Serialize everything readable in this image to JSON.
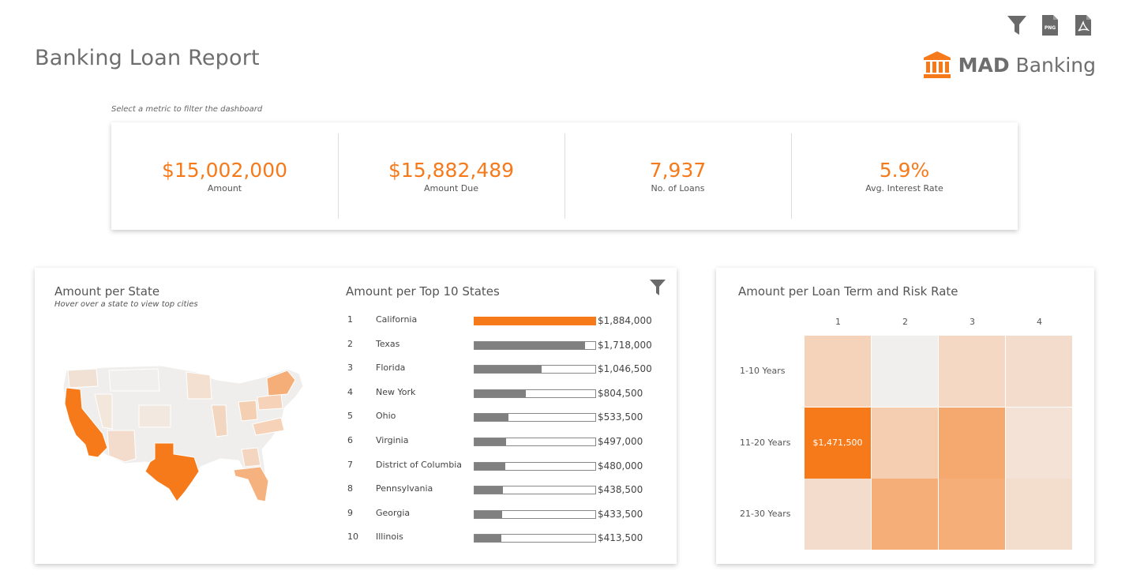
{
  "header": {
    "title": "Banking Loan Report",
    "brand_bold": "MAD",
    "brand_light": "Banking",
    "toolbar": [
      {
        "name": "filter-icon",
        "label": ""
      },
      {
        "name": "png-export-icon",
        "label": "PNG"
      },
      {
        "name": "pdf-export-icon",
        "label": ""
      }
    ]
  },
  "kpis": {
    "hint": "Select a metric to filter the dashboard",
    "items": [
      {
        "value": "$15,002,000",
        "label": "Amount"
      },
      {
        "value": "$15,882,489",
        "label": "Amount Due"
      },
      {
        "value": "7,937",
        "label": "No. of Loans"
      },
      {
        "value": "5.9%",
        "label": "Avg. Interest Rate"
      }
    ]
  },
  "map_panel": {
    "title": "Amount per State",
    "subtitle": "Hover over a state to view top cities",
    "highlight_color": "#f77a1a"
  },
  "top_states": {
    "title": "Amount per Top 10 States",
    "max_value": 1884000,
    "rows": [
      {
        "rank": "1",
        "state": "California",
        "value": 1884000,
        "label": "$1,884,000",
        "highlight": true
      },
      {
        "rank": "2",
        "state": "Texas",
        "value": 1718000,
        "label": "$1,718,000"
      },
      {
        "rank": "3",
        "state": "Florida",
        "value": 1046500,
        "label": "$1,046,500"
      },
      {
        "rank": "4",
        "state": "New York",
        "value": 804500,
        "label": "$804,500"
      },
      {
        "rank": "5",
        "state": "Ohio",
        "value": 533500,
        "label": "$533,500"
      },
      {
        "rank": "6",
        "state": "Virginia",
        "value": 497000,
        "label": "$497,000"
      },
      {
        "rank": "7",
        "state": "District of Columbia",
        "value": 480000,
        "label": "$480,000"
      },
      {
        "rank": "8",
        "state": "Pennsylvania",
        "value": 438500,
        "label": "$438,500"
      },
      {
        "rank": "9",
        "state": "Georgia",
        "value": 433500,
        "label": "$433,500"
      },
      {
        "rank": "10",
        "state": "Illinois",
        "value": 413500,
        "label": "$413,500"
      }
    ]
  },
  "heatmap": {
    "title": "Amount per Loan Term and Risk Rate",
    "columns": [
      "1",
      "2",
      "3",
      "4"
    ],
    "rows": [
      "1-10 Years",
      "11-20 Years",
      "21-30 Years"
    ],
    "cells": [
      [
        "#f5d3ba",
        "#f0efee",
        "#f4d8c4",
        "#f3dccb"
      ],
      [
        "#f77a1a",
        "#f5cdb0",
        "#f5a96e",
        "#f3e2d5"
      ],
      [
        "#f3dccb",
        "#f6ae78",
        "#f6ae78",
        "#f3ddcd"
      ]
    ],
    "cell_label": "$1,471,500"
  }
}
